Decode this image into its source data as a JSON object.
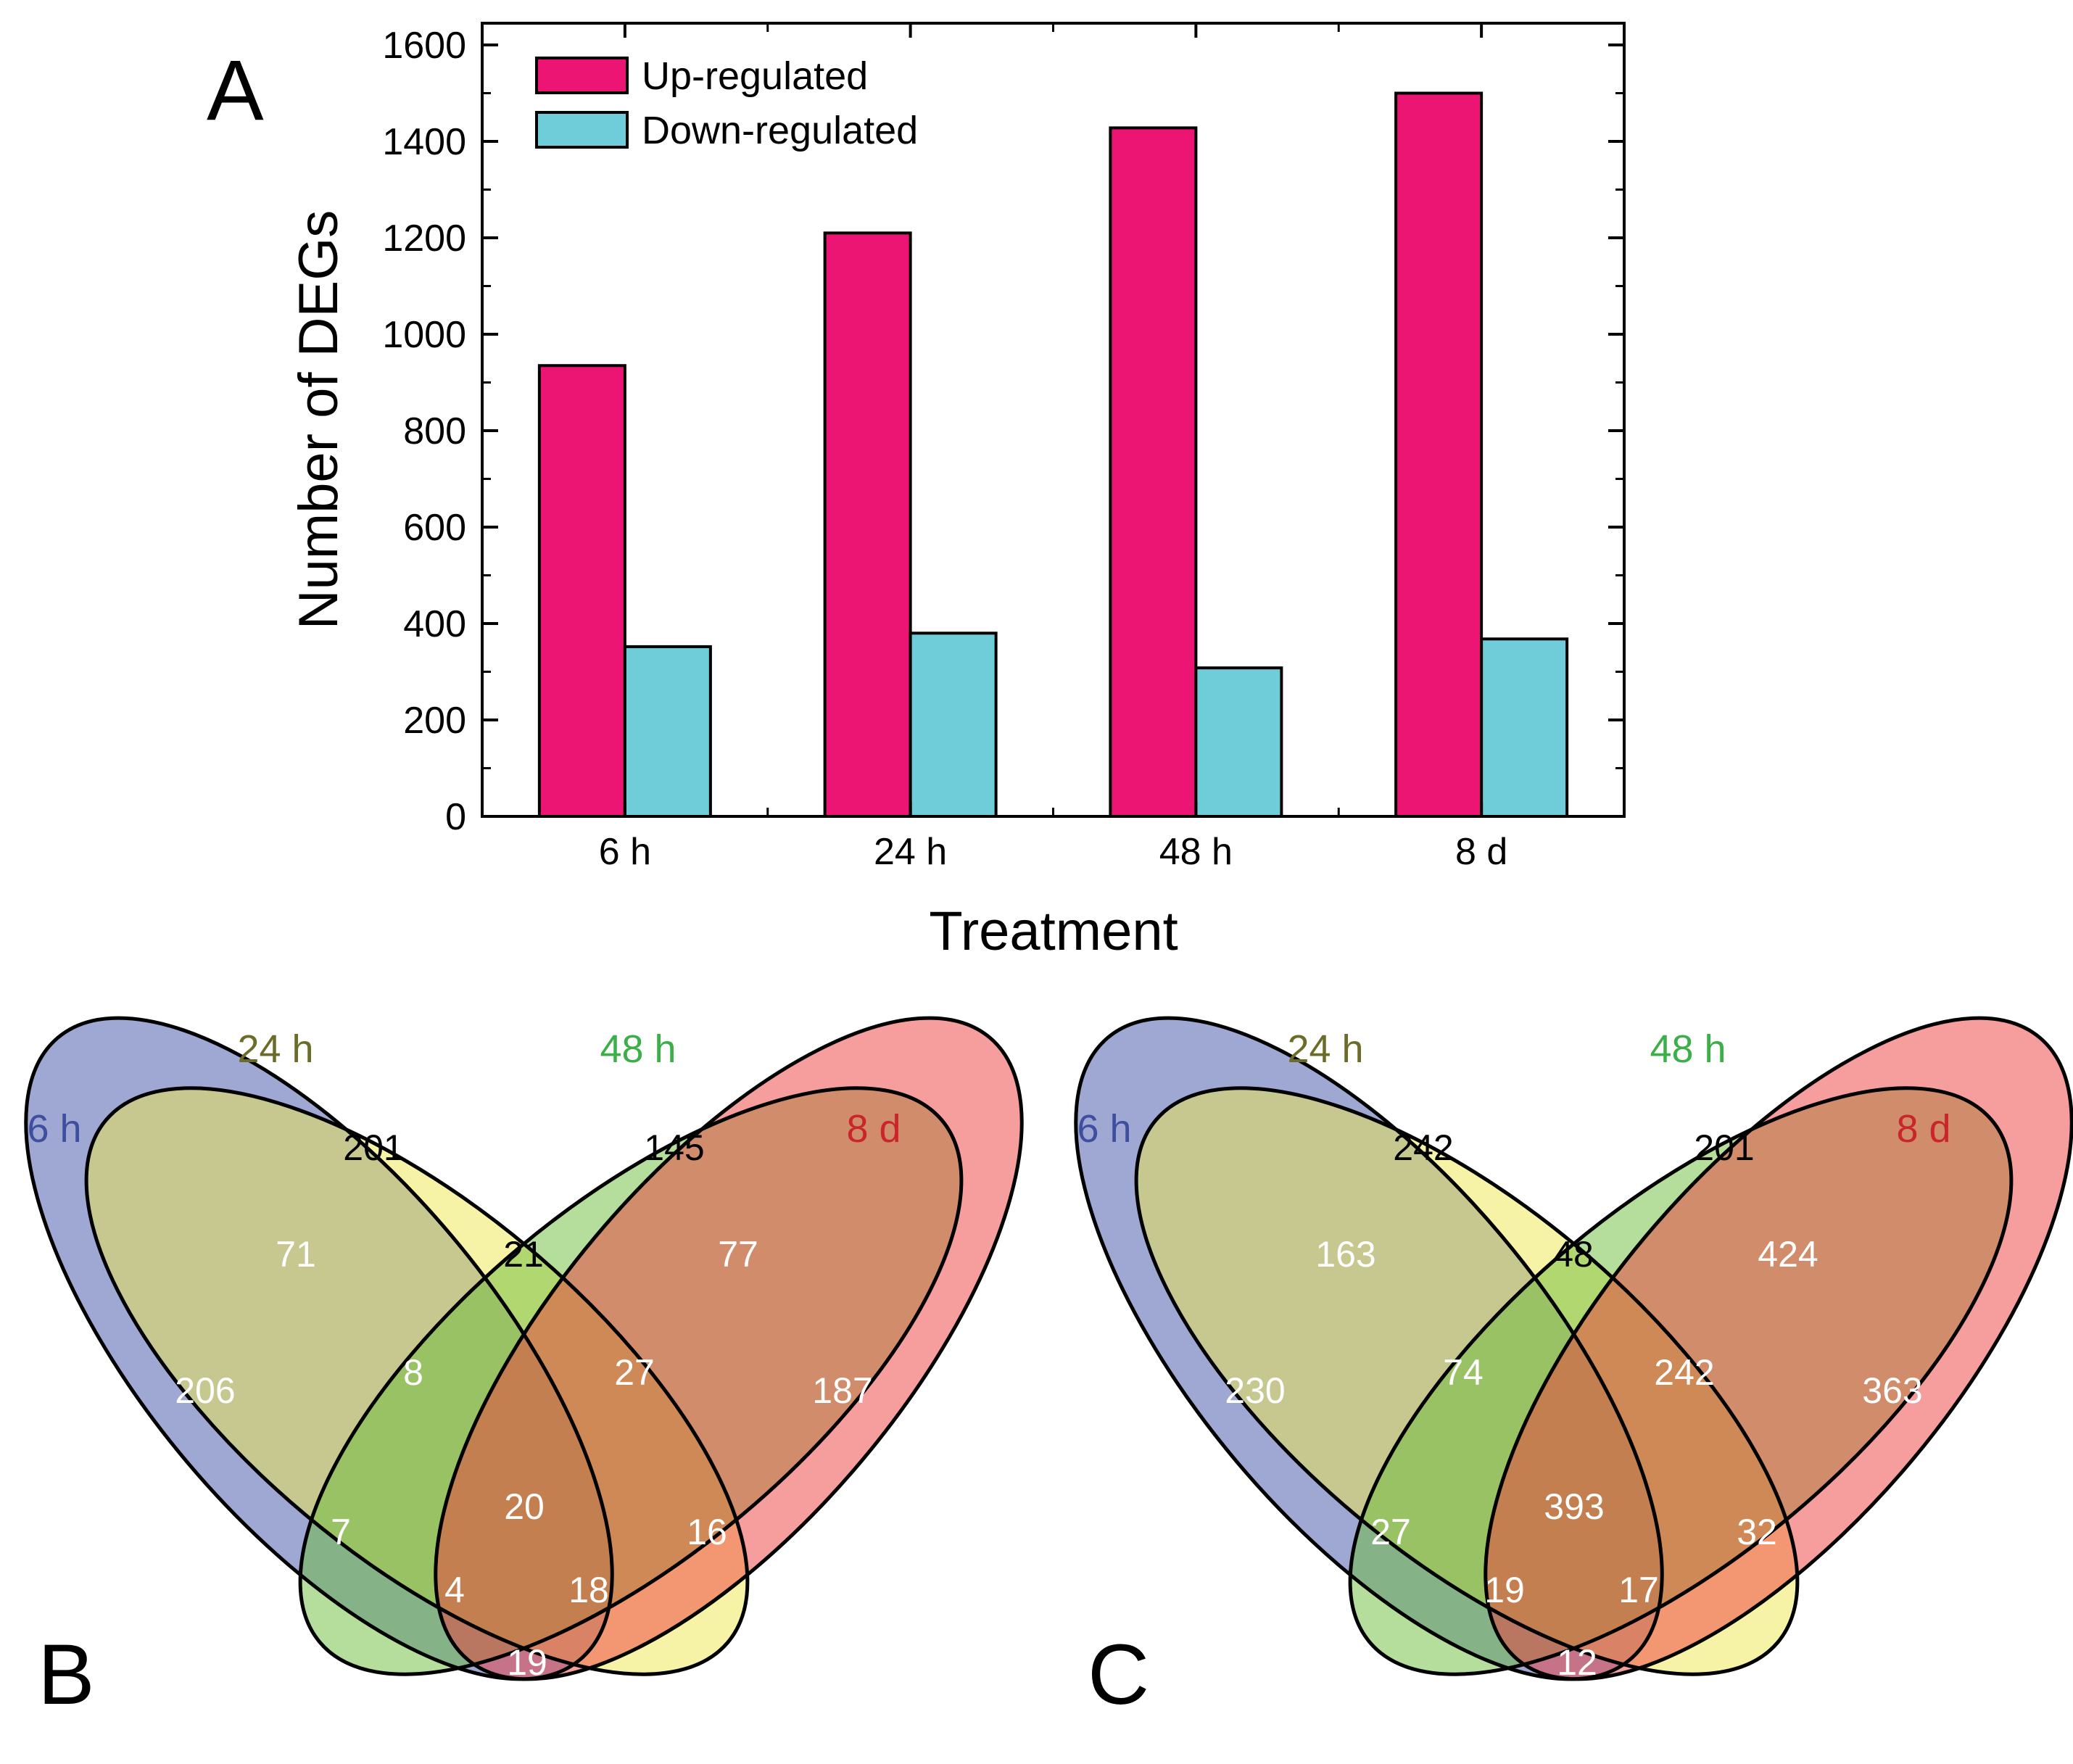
{
  "chart_data": [
    {
      "panel_label": "A",
      "type": "bar",
      "xlabel": "Treatment",
      "ylabel": "Number of DEGs",
      "categories": [
        "6 h",
        "24 h",
        "48 h",
        "8 d"
      ],
      "ylim": [
        0,
        1650
      ],
      "yticks": [
        0,
        200,
        400,
        600,
        800,
        1000,
        1200,
        1400,
        1600
      ],
      "series": [
        {
          "name": "Up-regulated",
          "color": "#ED1574",
          "values": [
            935,
            1210,
            1428,
            1500
          ]
        },
        {
          "name": "Down-regulated",
          "color": "#6FCCD9",
          "values": [
            352,
            380,
            308,
            368
          ]
        }
      ],
      "legend_position": "top-left"
    },
    {
      "panel_label": "B",
      "type": "venn",
      "sets": [
        {
          "name": "6 h",
          "fill": "#3F51A5",
          "label_color": "#3F4FA0"
        },
        {
          "name": "24 h",
          "fill": "#EEE84E",
          "label_color": "#6B6B2A"
        },
        {
          "name": "48 h",
          "fill": "#6CBB3A",
          "label_color": "#3DAF4A"
        },
        {
          "name": "8 d",
          "fill": "#EE3B3B",
          "label_color": "#C9252B"
        }
      ],
      "regions": {
        "6h": 206,
        "24h": 201,
        "48h": 145,
        "8d": 187,
        "6h_24h": 71,
        "24h_48h": 21,
        "48h_8d": 77,
        "6h_24h_48h": 8,
        "24h_48h_8d": 27,
        "6h_48h": 7,
        "all": 20,
        "24h_8d": 16,
        "6h_48h_8d": 4,
        "6h_24h_8d": 18,
        "6h_8d": 19
      }
    },
    {
      "panel_label": "C",
      "type": "venn",
      "sets": [
        {
          "name": "6 h",
          "fill": "#3F51A5",
          "label_color": "#3F4FA0"
        },
        {
          "name": "24 h",
          "fill": "#EEE84E",
          "label_color": "#6B6B2A"
        },
        {
          "name": "48 h",
          "fill": "#6CBB3A",
          "label_color": "#3DAF4A"
        },
        {
          "name": "8 d",
          "fill": "#EE3B3B",
          "label_color": "#C9252B"
        }
      ],
      "regions": {
        "6h": 230,
        "24h": 242,
        "48h": 201,
        "8d": 363,
        "6h_24h": 163,
        "24h_48h": 48,
        "48h_8d": 424,
        "6h_24h_48h": 74,
        "24h_48h_8d": 242,
        "6h_48h": 27,
        "all": 393,
        "24h_8d": 32,
        "6h_48h_8d": 19,
        "6h_24h_8d": 17,
        "6h_8d": 12
      }
    }
  ]
}
